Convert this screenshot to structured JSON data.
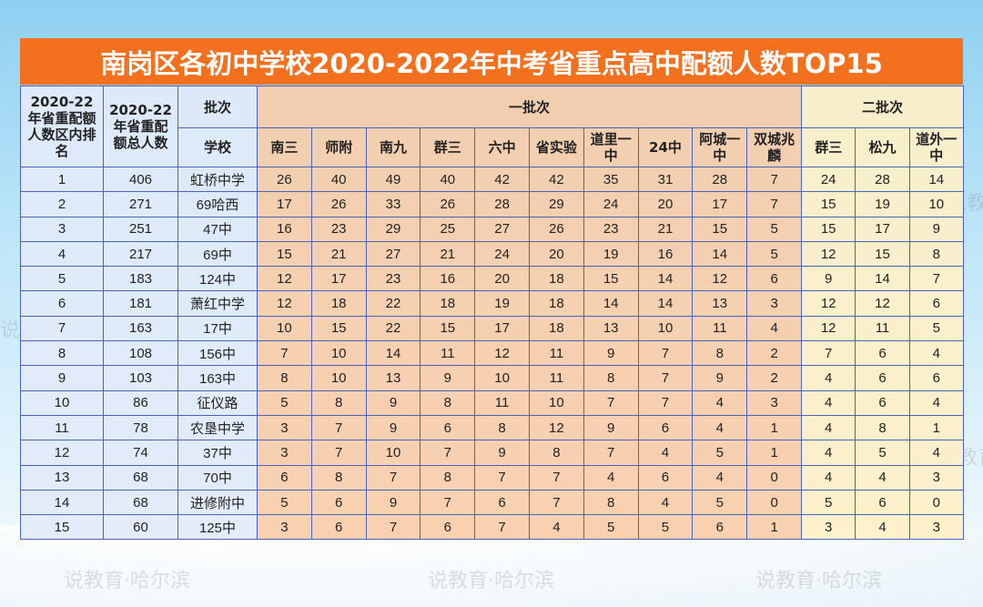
{
  "title": "南岗区各初中学校2020-2022年中考省重点高中配额人数TOP15",
  "watermark": "说教育·哈尔滨",
  "colors": {
    "title_bg": "#f3701f",
    "left_cols": "#e2eaf8",
    "batch1": "#f8cdaa",
    "batch2": "#fef0c8",
    "border": "#4a63b8"
  },
  "headers": {
    "rank": "2020-22年省重配额人数区内排名",
    "total": "2020-22年省重配额总人数",
    "batch_label": "批次",
    "school_label": "学校",
    "batch1": "一批次",
    "batch2": "二批次",
    "batch1_schools": [
      "南三",
      "师附",
      "南九",
      "群三",
      "六中",
      "省实验",
      "道里一中",
      "24中",
      "阿城一中",
      "双城兆麟"
    ],
    "batch2_schools": [
      "群三",
      "松九",
      "道外一中"
    ]
  },
  "rows": [
    {
      "rank": "1",
      "total": "406",
      "school": "虹桥中学",
      "b1": [
        "26",
        "40",
        "49",
        "40",
        "42",
        "42",
        "35",
        "31",
        "28",
        "7"
      ],
      "b2": [
        "24",
        "28",
        "14"
      ]
    },
    {
      "rank": "2",
      "total": "271",
      "school": "69哈西",
      "b1": [
        "17",
        "26",
        "33",
        "26",
        "28",
        "29",
        "24",
        "20",
        "17",
        "7"
      ],
      "b2": [
        "15",
        "19",
        "10"
      ]
    },
    {
      "rank": "3",
      "total": "251",
      "school": "47中",
      "b1": [
        "16",
        "23",
        "29",
        "25",
        "27",
        "26",
        "23",
        "21",
        "15",
        "5"
      ],
      "b2": [
        "15",
        "17",
        "9"
      ]
    },
    {
      "rank": "4",
      "total": "217",
      "school": "69中",
      "b1": [
        "15",
        "21",
        "27",
        "21",
        "24",
        "20",
        "19",
        "16",
        "14",
        "5"
      ],
      "b2": [
        "12",
        "15",
        "8"
      ]
    },
    {
      "rank": "5",
      "total": "183",
      "school": "124中",
      "b1": [
        "12",
        "17",
        "23",
        "16",
        "20",
        "18",
        "15",
        "14",
        "12",
        "6"
      ],
      "b2": [
        "9",
        "14",
        "7"
      ]
    },
    {
      "rank": "6",
      "total": "181",
      "school": "萧红中学",
      "b1": [
        "12",
        "18",
        "22",
        "18",
        "19",
        "18",
        "14",
        "14",
        "13",
        "3"
      ],
      "b2": [
        "12",
        "12",
        "6"
      ]
    },
    {
      "rank": "7",
      "total": "163",
      "school": "17中",
      "b1": [
        "10",
        "15",
        "22",
        "15",
        "17",
        "18",
        "13",
        "10",
        "11",
        "4"
      ],
      "b2": [
        "12",
        "11",
        "5"
      ]
    },
    {
      "rank": "8",
      "total": "108",
      "school": "156中",
      "b1": [
        "7",
        "10",
        "14",
        "11",
        "12",
        "11",
        "9",
        "7",
        "8",
        "2"
      ],
      "b2": [
        "7",
        "6",
        "4"
      ]
    },
    {
      "rank": "9",
      "total": "103",
      "school": "163中",
      "b1": [
        "8",
        "10",
        "13",
        "9",
        "10",
        "11",
        "8",
        "7",
        "9",
        "2"
      ],
      "b2": [
        "4",
        "6",
        "6"
      ]
    },
    {
      "rank": "10",
      "total": "86",
      "school": "征仪路",
      "b1": [
        "5",
        "8",
        "9",
        "8",
        "11",
        "10",
        "7",
        "7",
        "4",
        "3"
      ],
      "b2": [
        "4",
        "6",
        "4"
      ]
    },
    {
      "rank": "11",
      "total": "78",
      "school": "农垦中学",
      "b1": [
        "3",
        "7",
        "9",
        "6",
        "8",
        "12",
        "9",
        "6",
        "4",
        "1"
      ],
      "b2": [
        "4",
        "8",
        "1"
      ]
    },
    {
      "rank": "12",
      "total": "74",
      "school": "37中",
      "b1": [
        "3",
        "7",
        "10",
        "7",
        "9",
        "8",
        "7",
        "4",
        "5",
        "1"
      ],
      "b2": [
        "4",
        "5",
        "4"
      ]
    },
    {
      "rank": "13",
      "total": "68",
      "school": "70中",
      "b1": [
        "6",
        "8",
        "7",
        "8",
        "7",
        "7",
        "4",
        "6",
        "4",
        "0"
      ],
      "b2": [
        "4",
        "4",
        "3"
      ]
    },
    {
      "rank": "14",
      "total": "68",
      "school": "进修附中",
      "b1": [
        "5",
        "6",
        "9",
        "7",
        "6",
        "7",
        "8",
        "4",
        "5",
        "0"
      ],
      "b2": [
        "5",
        "6",
        "0"
      ]
    },
    {
      "rank": "15",
      "total": "60",
      "school": "125中",
      "b1": [
        "3",
        "6",
        "7",
        "6",
        "7",
        "4",
        "5",
        "5",
        "6",
        "1"
      ],
      "b2": [
        "3",
        "4",
        "3"
      ]
    }
  ]
}
